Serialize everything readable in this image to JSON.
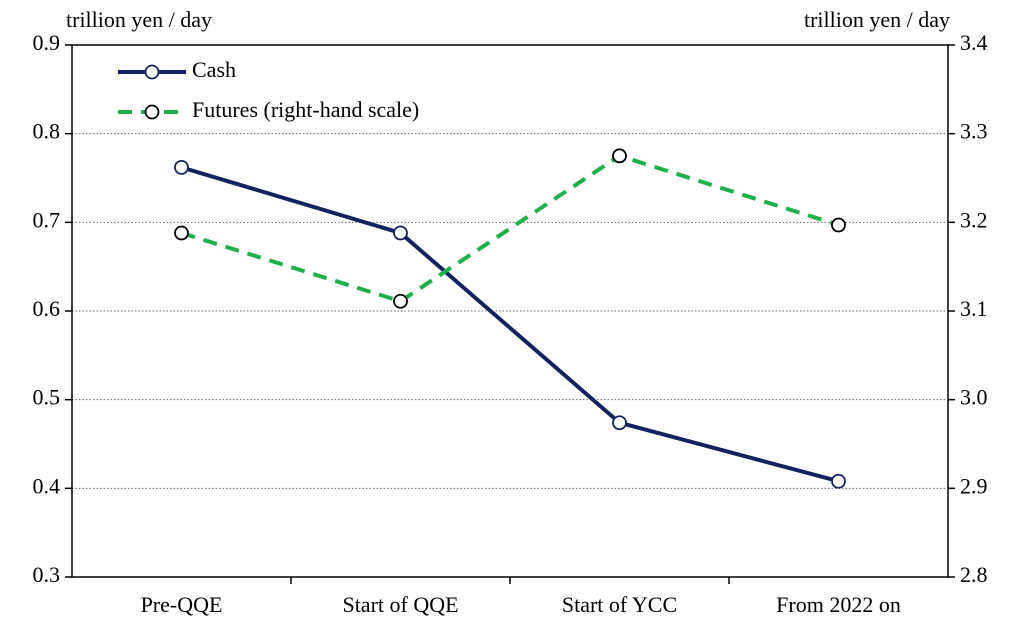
{
  "chart_data": {
    "type": "line",
    "ylabel": "trillion yen / day",
    "y2label": "trillion yen / day",
    "categories": [
      "Pre-QQE",
      "Start of QQE",
      "Start of YCC",
      "From 2022 on"
    ],
    "series": [
      {
        "name": "Cash",
        "color": "#14235e",
        "values": [
          0.762,
          0.688,
          0.474,
          0.408
        ]
      },
      {
        "name": "Futures (right-hand scale)",
        "color": "#1fae4b",
        "axis": "y2",
        "values": [
          3.188,
          3.111,
          3.275,
          3.197
        ]
      }
    ],
    "ylim": [
      0.3,
      0.9
    ],
    "yticks": [
      0.3,
      0.4,
      0.5,
      0.6,
      0.7,
      0.8,
      0.9
    ],
    "y2lim": [
      2.8,
      3.4
    ],
    "y2ticks": [
      2.8,
      2.9,
      {
        "value": 3,
        "label": "3.0"
      },
      3.1,
      3.2,
      3.3,
      3.4
    ],
    "grid": true,
    "legend": "upper left"
  }
}
